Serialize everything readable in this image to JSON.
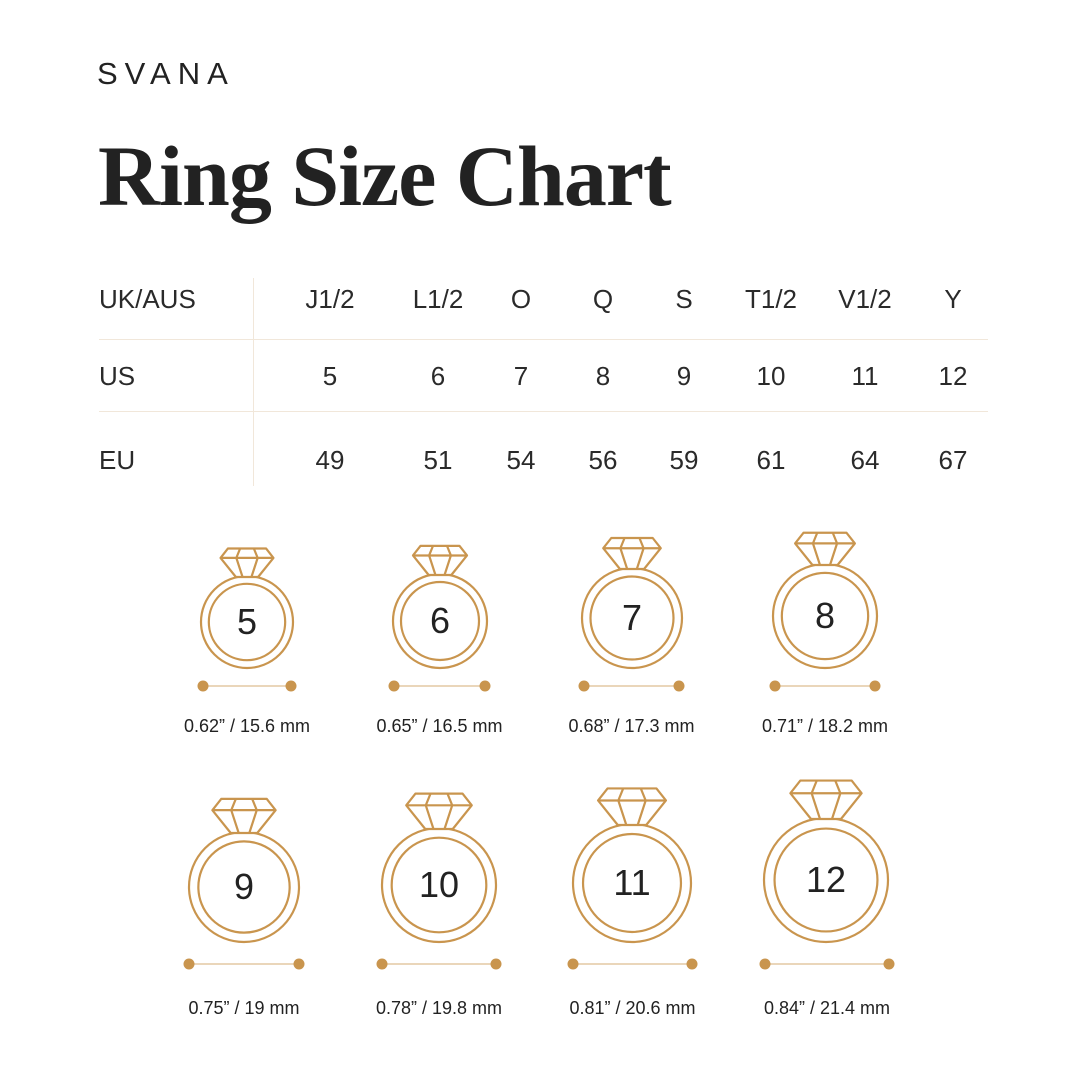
{
  "brand": "SVANA",
  "title": "Ring Size Chart",
  "accent_color": "#c9954e",
  "table": {
    "rows": [
      {
        "label": "UK/AUS",
        "values": [
          "J1/2",
          "L1/2",
          "O",
          "Q",
          "S",
          "T1/2",
          "V1/2",
          "Y"
        ]
      },
      {
        "label": "US",
        "values": [
          "5",
          "6",
          "7",
          "8",
          "9",
          "10",
          "11",
          "12"
        ]
      },
      {
        "label": "EU",
        "values": [
          "49",
          "51",
          "54",
          "56",
          "59",
          "61",
          "64",
          "67"
        ]
      }
    ]
  },
  "rings": [
    {
      "size": "5",
      "measurement": "0.62” / 15.6 mm"
    },
    {
      "size": "6",
      "measurement": "0.65” / 16.5 mm"
    },
    {
      "size": "7",
      "measurement": "0.68” / 17.3 mm"
    },
    {
      "size": "8",
      "measurement": "0.71” / 18.2 mm"
    },
    {
      "size": "9",
      "measurement": "0.75” / 19 mm"
    },
    {
      "size": "10",
      "measurement": "0.78” / 19.8 mm"
    },
    {
      "size": "11",
      "measurement": "0.81” / 20.6 mm"
    },
    {
      "size": "12",
      "measurement": "0.84” / 21.4 mm"
    }
  ]
}
